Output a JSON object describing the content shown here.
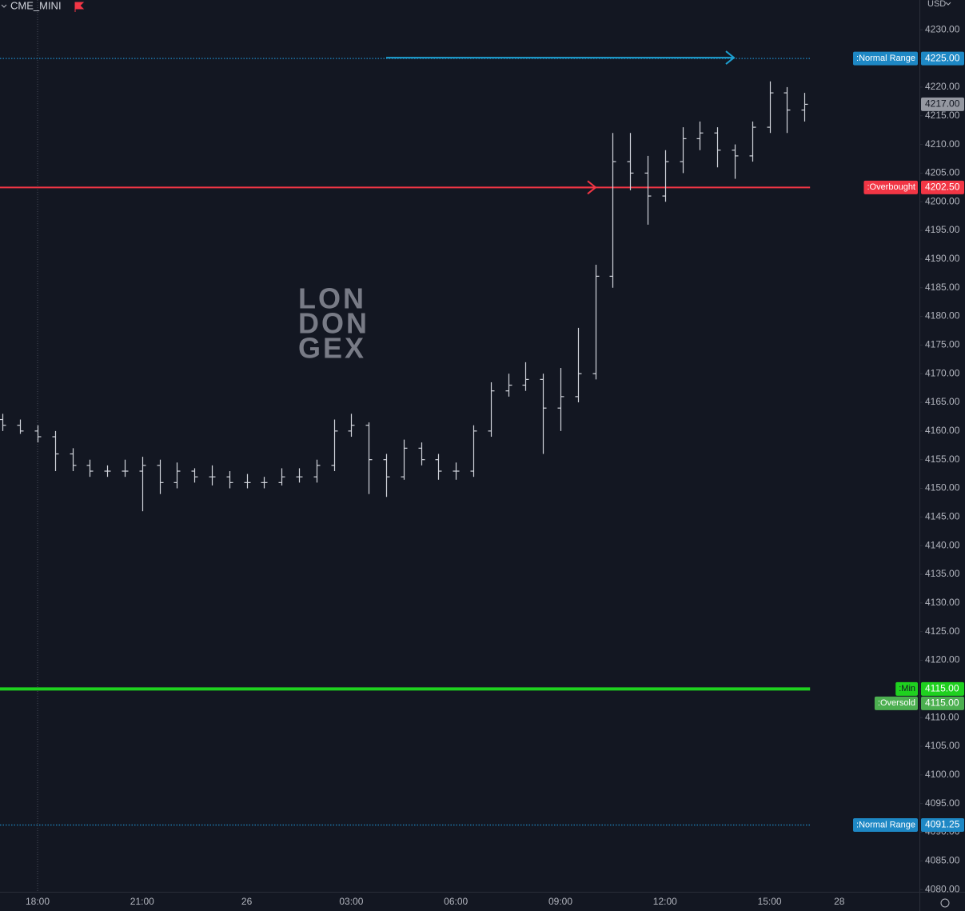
{
  "chart_data": {
    "type": "ohlc",
    "title": "CME_MINI",
    "currency": "USD",
    "watermark": [
      "LON",
      "DON",
      "GEX"
    ],
    "color": "#d1d4dc",
    "categories": [
      null,
      null,
      "18:00",
      null,
      null,
      null,
      null,
      null,
      "21:00",
      null,
      null,
      null,
      null,
      null,
      "26",
      null,
      null,
      null,
      null,
      null,
      "03:00",
      null,
      null,
      null,
      null,
      null,
      "06:00",
      null,
      null,
      null,
      null,
      null,
      "09:00",
      null,
      null,
      null,
      null,
      null,
      "12:00",
      null,
      null,
      null,
      null,
      null,
      "15:00",
      null,
      null,
      null,
      "28"
    ],
    "open": [
      4162,
      4161,
      4160,
      4159,
      4156,
      4154,
      4153,
      4153,
      4153,
      4154,
      4151,
      4153,
      4152,
      4152,
      4151,
      4151,
      4151,
      4152,
      4152,
      4154,
      4160,
      4161,
      4155,
      4152,
      4157,
      4155,
      4153,
      4153,
      4160,
      4167,
      4168,
      4169,
      4164,
      4166,
      4170,
      4187,
      4207,
      4205,
      4201,
      4207,
      4211,
      4212,
      4209,
      4208,
      4213,
      4219,
      4216,
      null,
      null
    ],
    "high": [
      4163,
      4162,
      4161,
      4160,
      4157,
      4155,
      4154,
      4155,
      4155.5,
      4155,
      4154.5,
      4153.5,
      4154,
      4153,
      4152.5,
      4152,
      4153.5,
      4153.5,
      4155,
      4162,
      4163,
      4161.5,
      4156,
      4158.5,
      4158,
      4156,
      4154.5,
      4161,
      4168.5,
      4170,
      4172,
      4170,
      4171,
      4178,
      4189,
      4212,
      4212,
      4208,
      4209,
      4213,
      4214,
      4213,
      4210,
      4214,
      4221,
      4220,
      4219,
      null,
      null
    ],
    "low": [
      4160,
      4159.5,
      4158,
      4153,
      4153,
      4152,
      4152,
      4152,
      4146,
      4149,
      4150,
      4151,
      4150.5,
      4150,
      4150,
      4150,
      4150.5,
      4151,
      4151,
      4153,
      4159,
      4149,
      4148.5,
      4151.5,
      4154,
      4151.5,
      4151.5,
      4152,
      4159,
      4166,
      4167,
      4156,
      4160,
      4165,
      4169,
      4185,
      4202,
      4196,
      4200,
      4205,
      4209,
      4206,
      4204,
      4207,
      4212,
      4212,
      4214,
      null,
      null
    ],
    "close": [
      4161,
      4160,
      4159,
      4156,
      4154,
      4153,
      4153,
      4153,
      4154,
      4151,
      4153,
      4152,
      4152,
      4151,
      4151,
      4151,
      4152,
      4152,
      4154,
      4160,
      4161,
      4155,
      4152,
      4157,
      4155,
      4153,
      4153,
      4160,
      4167,
      4168,
      4169,
      4164,
      4166,
      4170,
      4187,
      4207,
      4205,
      4201,
      4207,
      4211,
      4212,
      4209,
      4208,
      4213,
      4219,
      4216,
      4217,
      null,
      null
    ],
    "last_price": {
      "value": 4217,
      "label": "4217.00"
    },
    "levels": [
      {
        "name": ":Normal Range",
        "value": 4225,
        "label": "4225.00",
        "color": "#1e88c5",
        "style": "dotted"
      },
      {
        "name": ":Overbought",
        "value": 4202.5,
        "label": "4202.50",
        "color": "#f23645",
        "style": "solid"
      },
      {
        "name": ":Min",
        "value": 4115,
        "label": "4115.00",
        "color": "#1fd11f",
        "style": "thick"
      },
      {
        "name": ":Oversold",
        "value": 4115,
        "label": "4115.00",
        "color": "#4caf50",
        "style": "none"
      },
      {
        "name": ":Normal Range",
        "value": 4091.25,
        "label": "4091.25",
        "color": "#1e88c5",
        "style": "dotted"
      }
    ],
    "ylim": [
      4079.6,
      4235.2
    ],
    "yticks": [
      {
        "value": 4080,
        "label": "4080.00"
      },
      {
        "value": 4085,
        "label": "4085.00"
      },
      {
        "value": 4090,
        "label": "4090.00"
      },
      {
        "value": 4095,
        "label": "4095.00"
      },
      {
        "value": 4100,
        "label": "4100.00"
      },
      {
        "value": 4105,
        "label": "4105.00"
      },
      {
        "value": 4110,
        "label": "4110.00"
      },
      {
        "value": 4115,
        "label": "4115.00"
      },
      {
        "value": 4120,
        "label": "4120.00"
      },
      {
        "value": 4125,
        "label": "4125.00"
      },
      {
        "value": 4130,
        "label": "4130.00"
      },
      {
        "value": 4135,
        "label": "4135.00"
      },
      {
        "value": 4140,
        "label": "4140.00"
      },
      {
        "value": 4145,
        "label": "4145.00"
      },
      {
        "value": 4150,
        "label": "4150.00"
      },
      {
        "value": 4155,
        "label": "4155.00"
      },
      {
        "value": 4160,
        "label": "4160.00"
      },
      {
        "value": 4165,
        "label": "4165.00"
      },
      {
        "value": 4170,
        "label": "4170.00"
      },
      {
        "value": 4175,
        "label": "4175.00"
      },
      {
        "value": 4180,
        "label": "4180.00"
      },
      {
        "value": 4185,
        "label": "4185.00"
      },
      {
        "value": 4190,
        "label": "4190.00"
      },
      {
        "value": 4195,
        "label": "4195.00"
      },
      {
        "value": 4200,
        "label": "4200.00"
      },
      {
        "value": 4205,
        "label": "4205.00"
      },
      {
        "value": 4210,
        "label": "4210.00"
      },
      {
        "value": 4215,
        "label": "4215.00"
      },
      {
        "value": 4220,
        "label": "4220.00"
      },
      {
        "value": 4225,
        "label": "4225.00"
      },
      {
        "value": 4230,
        "label": "4230.00"
      }
    ],
    "grid": false
  }
}
